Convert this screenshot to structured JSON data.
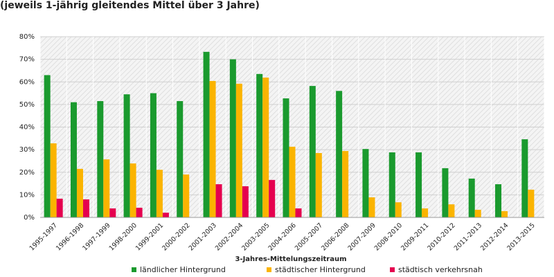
{
  "chart_data": {
    "type": "bar",
    "title": "(jeweils 1-jährig gleitendes Mittel über 3 Jahre)",
    "x_label": "3-Jahres-Mittelungszeitraum",
    "categories": [
      "1995-1997",
      "1996-1998",
      "1997-1999",
      "1998-2000",
      "1999-2001",
      "2000-2002",
      "2001-2003",
      "2002-2004",
      "2003-2005",
      "2004-2006",
      "2005-2007",
      "2006-2008",
      "2007-2009",
      "2008-2010",
      "2009-2011",
      "2010-2012",
      "2011-2013",
      "2012-2014",
      "2013-2015"
    ],
    "series": [
      {
        "name": "ländlicher Hintergrund",
        "color": "#1a9a2e",
        "values": [
          63,
          51,
          51.5,
          54.5,
          55,
          51.5,
          73.3,
          70,
          63.5,
          52.7,
          58.2,
          56,
          30.3,
          28.8,
          28.8,
          21.8,
          17.2,
          14.7,
          34.6
        ]
      },
      {
        "name": "städtischer Hintergrund",
        "color": "#fbb400",
        "values": [
          32.8,
          21.5,
          25.7,
          23.9,
          21.1,
          19,
          60.4,
          59.2,
          61.9,
          31.3,
          28.5,
          29.4,
          8.9,
          6.7,
          4,
          5.8,
          3.4,
          2.8,
          12.3
        ]
      },
      {
        "name": "städtisch verkehrsnah",
        "color": "#e5004f",
        "values": [
          8.3,
          8,
          4,
          4.3,
          2.1,
          null,
          14.7,
          13.8,
          16.6,
          4,
          null,
          null,
          null,
          null,
          null,
          null,
          null,
          null,
          null
        ]
      }
    ],
    "ylim": [
      0,
      80
    ],
    "yticks": [
      {
        "value": 0,
        "label": "0%"
      },
      {
        "value": 10,
        "label": "10%"
      },
      {
        "value": 20,
        "label": "20%"
      },
      {
        "value": 30,
        "label": "30%"
      },
      {
        "value": 40,
        "label": "40%"
      },
      {
        "value": 50,
        "label": "50%"
      },
      {
        "value": 60,
        "label": "60%"
      },
      {
        "value": 70,
        "label": "70%"
      },
      {
        "value": 80,
        "label": "80%"
      }
    ],
    "grid": true,
    "legend": "bottom"
  }
}
